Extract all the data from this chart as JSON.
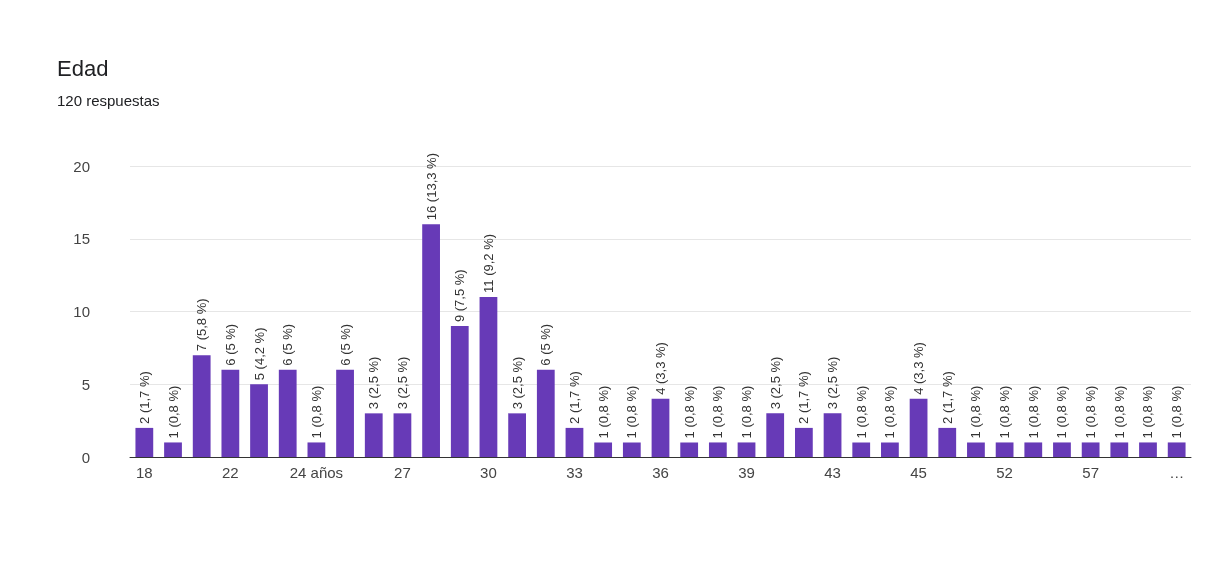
{
  "chart_data": {
    "type": "bar",
    "title": "Edad",
    "subtitle": "120 respuestas",
    "categories": [
      "18",
      null,
      null,
      "22",
      null,
      null,
      "24 años",
      null,
      null,
      "27",
      null,
      null,
      "30",
      null,
      null,
      "33",
      null,
      null,
      "36",
      null,
      null,
      "39",
      null,
      null,
      "43",
      null,
      null,
      "45",
      null,
      null,
      "52",
      null,
      null,
      "57",
      null,
      null,
      "…"
    ],
    "values": [
      2,
      1,
      7,
      6,
      5,
      6,
      1,
      6,
      3,
      3,
      16,
      9,
      11,
      3,
      6,
      2,
      1,
      1,
      4,
      1,
      1,
      1,
      3,
      2,
      3,
      1,
      1,
      4,
      2,
      1,
      1,
      1,
      1,
      1,
      1,
      1,
      1
    ],
    "value_labels": [
      "2 (1,7 %)",
      "1 (0,8 %)",
      "7 (5,8 %)",
      "6 (5 %)",
      "5 (4,2 %)",
      "6 (5 %)",
      "1 (0,8 %)",
      "6 (5 %)",
      "3 (2,5 %)",
      "3 (2,5 %)",
      "16 (13,3 %)",
      "9 (7,5 %)",
      "11 (9,2 %)",
      "3 (2,5 %)",
      "6 (5 %)",
      "2 (1,7 %)",
      "1 (0,8 %)",
      "1 (0,8 %)",
      "4 (3,3 %)",
      "1 (0,8 %)",
      "1 (0,8 %)",
      "1 (0,8 %)",
      "3 (2,5 %)",
      "2 (1,7 %)",
      "3 (2,5 %)",
      "1 (0,8 %)",
      "1 (0,8 %)",
      "4 (3,3 %)",
      "2 (1,7 %)",
      "1 (0,8 %)",
      "1 (0,8 %)",
      "1 (0,8 %)",
      "1 (0,8 %)",
      "1 (0,8 %)",
      "1 (0,8 %)",
      "1 (0,8 %)",
      "1 (0,8 %)"
    ],
    "color": "#673ab7",
    "ylim": [
      0,
      20
    ],
    "yticks": [
      0,
      5,
      10,
      15,
      20
    ],
    "grid": "y"
  }
}
